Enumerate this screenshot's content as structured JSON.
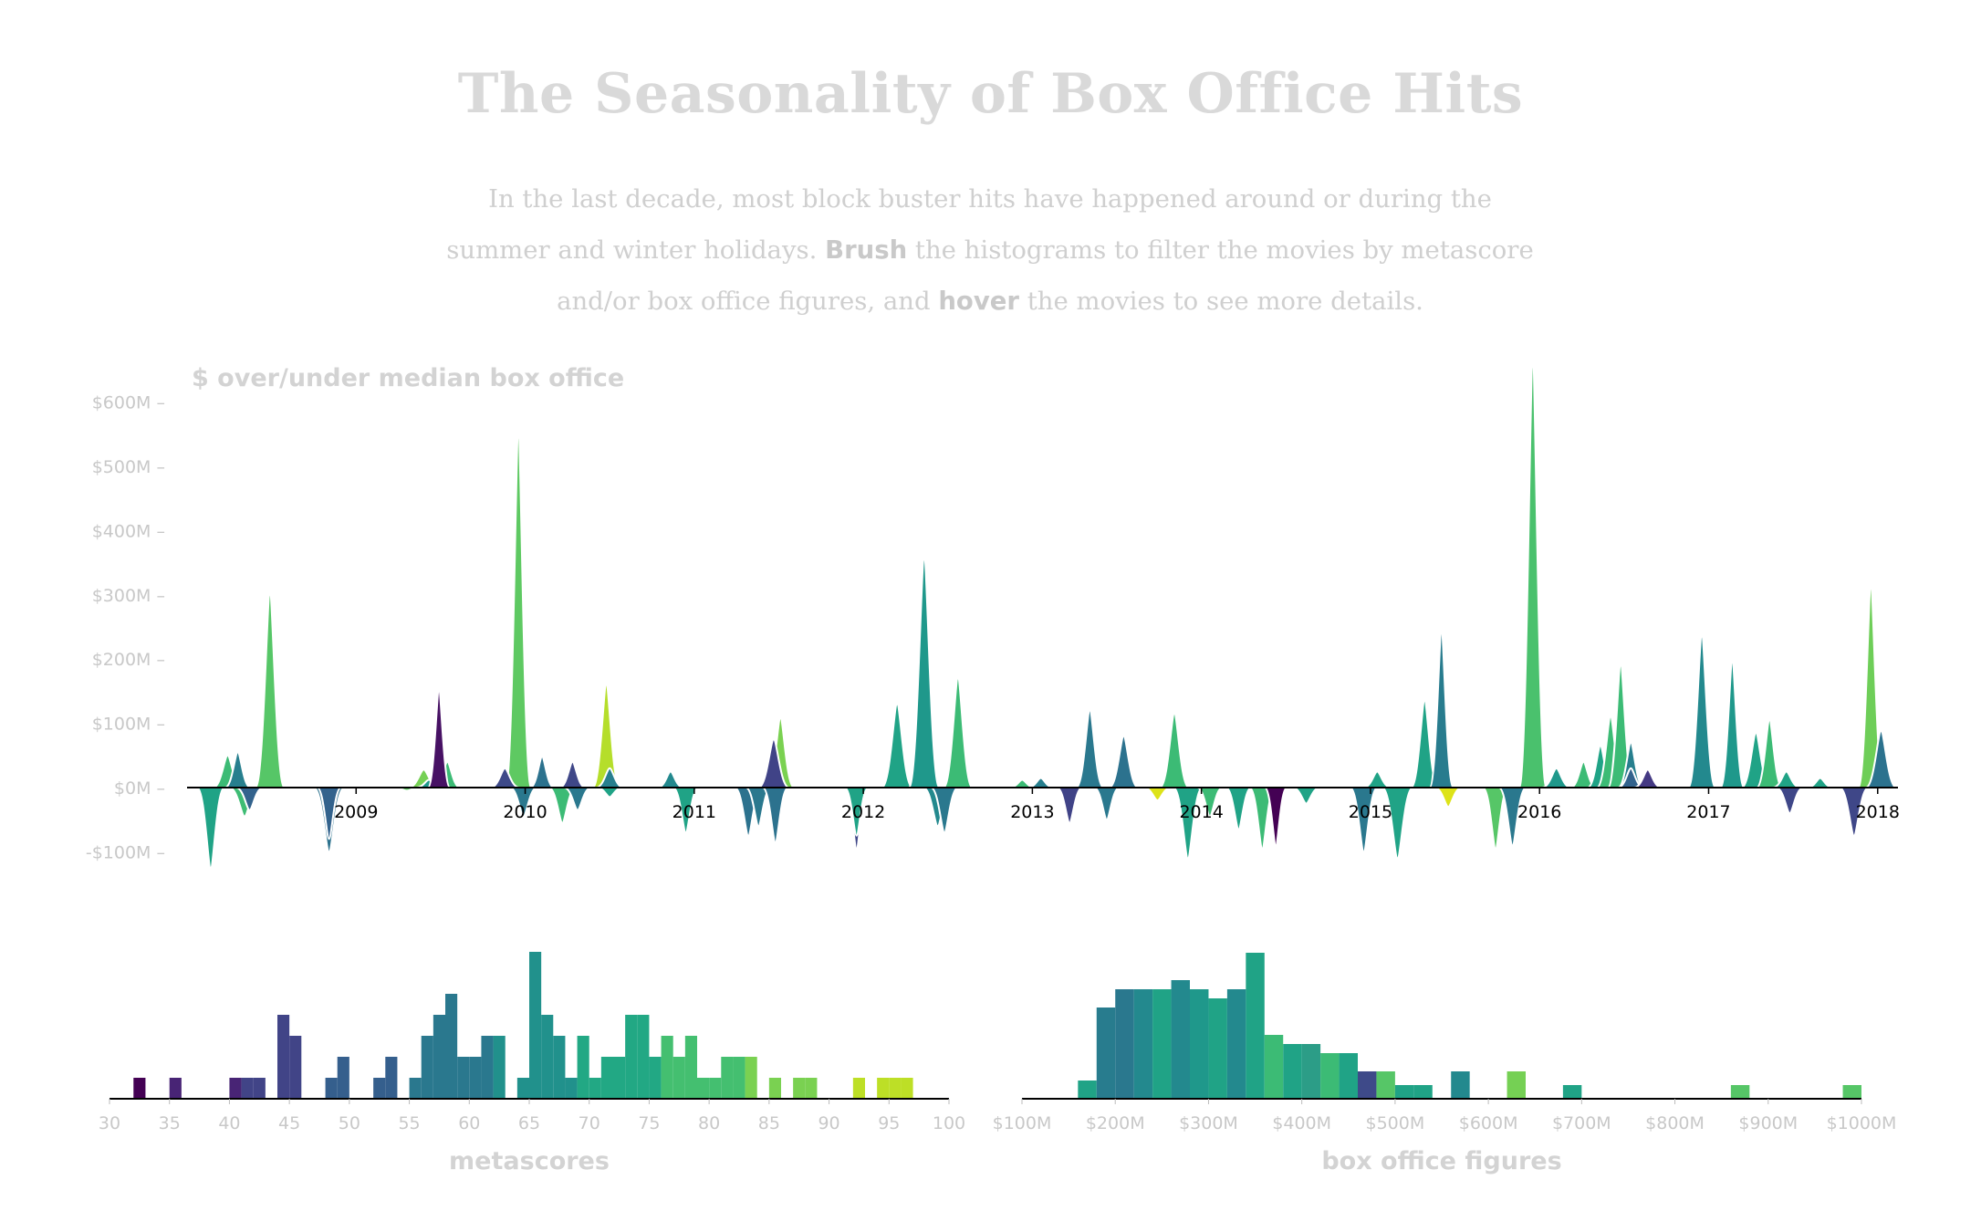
{
  "page": {
    "title": "The Seasonality of Box Office Hits",
    "intro_1": "In the last decade, most block buster hits have happened around or during the summer and winter holidays.",
    "brush_word": "Brush",
    "intro_2": "the histograms to filter the movies by metascore and/or box office figures, and",
    "hover_word": "hover",
    "intro_3": "the movies to see more details."
  },
  "chart_data": [
    {
      "type": "area",
      "title": "$ over/under median box office",
      "ylabel": "$ over/under median box office",
      "ylim": [
        -140,
        660
      ],
      "y_ticks": [
        {
          "value": -100,
          "label": "-$100M"
        },
        {
          "value": 0,
          "label": "$0M"
        },
        {
          "value": 100,
          "label": "$100M"
        },
        {
          "value": 200,
          "label": "$200M"
        },
        {
          "value": 300,
          "label": "$300M"
        },
        {
          "value": 400,
          "label": "$400M"
        },
        {
          "value": 500,
          "label": "$500M"
        },
        {
          "value": 600,
          "label": "$600M"
        }
      ],
      "xlim": [
        2008.0,
        2018.12
      ],
      "x_ticks": [
        {
          "value": 2009,
          "label": "2009"
        },
        {
          "value": 2010,
          "label": "2010"
        },
        {
          "value": 2011,
          "label": "2011"
        },
        {
          "value": 2012,
          "label": "2012"
        },
        {
          "value": 2013,
          "label": "2013"
        },
        {
          "value": 2014,
          "label": "2014"
        },
        {
          "value": 2015,
          "label": "2015"
        },
        {
          "value": 2016,
          "label": "2016"
        },
        {
          "value": 2017,
          "label": "2017"
        },
        {
          "value": 2018,
          "label": "2018"
        }
      ],
      "movies": [
        {
          "center": 2008.14,
          "width": 0.16,
          "value": -125,
          "color": "#20a386"
        },
        {
          "center": 2008.24,
          "width": 0.17,
          "value": 50,
          "color": "#3cbb75"
        },
        {
          "center": 2008.34,
          "width": 0.18,
          "value": -45,
          "color": "#3ebc74"
        },
        {
          "center": 2008.3,
          "width": 0.15,
          "value": 55,
          "color": "#277f8e"
        },
        {
          "center": 2008.37,
          "width": 0.16,
          "value": -35,
          "color": "#33638d"
        },
        {
          "center": 2008.49,
          "width": 0.17,
          "value": 300,
          "color": "#56c667"
        },
        {
          "center": 2008.84,
          "width": 0.18,
          "value": -100,
          "color": "#2c728e"
        },
        {
          "center": 2008.84,
          "width": 0.14,
          "value": -80,
          "color": "#33638d"
        },
        {
          "center": 2009.3,
          "width": 0.16,
          "value": -5,
          "color": "#5ec962"
        },
        {
          "center": 2009.4,
          "width": 0.18,
          "value": 28,
          "color": "#75d054"
        },
        {
          "center": 2009.43,
          "width": 0.15,
          "value": 12,
          "color": "#1f988b"
        },
        {
          "center": 2009.54,
          "width": 0.15,
          "value": 40,
          "color": "#3cbb75"
        },
        {
          "center": 2009.49,
          "width": 0.13,
          "value": 150,
          "color": "#471164"
        },
        {
          "center": 2009.96,
          "width": 0.15,
          "value": 545,
          "color": "#5ec962"
        },
        {
          "center": 2009.88,
          "width": 0.17,
          "value": 30,
          "color": "#3e4a89"
        },
        {
          "center": 2009.99,
          "width": 0.16,
          "value": -45,
          "color": "#2a788e"
        },
        {
          "center": 2010.1,
          "width": 0.14,
          "value": 48,
          "color": "#2c728e"
        },
        {
          "center": 2010.22,
          "width": 0.16,
          "value": -55,
          "color": "#3cbb75"
        },
        {
          "center": 2010.28,
          "width": 0.15,
          "value": 40,
          "color": "#3f4788"
        },
        {
          "center": 2010.31,
          "width": 0.16,
          "value": -35,
          "color": "#2a788e"
        },
        {
          "center": 2010.48,
          "width": 0.16,
          "value": 160,
          "color": "#b5de2b"
        },
        {
          "center": 2010.5,
          "width": 0.16,
          "value": 30,
          "color": "#277f8e"
        },
        {
          "center": 2010.5,
          "width": 0.15,
          "value": -15,
          "color": "#20a386"
        },
        {
          "center": 2010.86,
          "width": 0.15,
          "value": 25,
          "color": "#23898e"
        },
        {
          "center": 2010.95,
          "width": 0.15,
          "value": -70,
          "color": "#20a386"
        },
        {
          "center": 2011.32,
          "width": 0.16,
          "value": -75,
          "color": "#2c728e"
        },
        {
          "center": 2011.38,
          "width": 0.15,
          "value": -60,
          "color": "#2a788e"
        },
        {
          "center": 2011.48,
          "width": 0.15,
          "value": -85,
          "color": "#2c728e"
        },
        {
          "center": 2011.51,
          "width": 0.16,
          "value": 108,
          "color": "#7ad151"
        },
        {
          "center": 2011.47,
          "width": 0.18,
          "value": 75,
          "color": "#404387"
        },
        {
          "center": 2011.96,
          "width": 0.14,
          "value": -95,
          "color": "#3f4788"
        },
        {
          "center": 2011.96,
          "width": 0.14,
          "value": -75,
          "color": "#20a386"
        },
        {
          "center": 2012.2,
          "width": 0.18,
          "value": 130,
          "color": "#20a386"
        },
        {
          "center": 2012.36,
          "width": 0.18,
          "value": 355,
          "color": "#1f988b"
        },
        {
          "center": 2012.44,
          "width": 0.17,
          "value": -60,
          "color": "#23898e"
        },
        {
          "center": 2012.48,
          "width": 0.16,
          "value": -70,
          "color": "#2a788e"
        },
        {
          "center": 2012.56,
          "width": 0.17,
          "value": 170,
          "color": "#3cbb75"
        },
        {
          "center": 2012.94,
          "width": 0.15,
          "value": 12,
          "color": "#3cbb75"
        },
        {
          "center": 2013.05,
          "width": 0.15,
          "value": 15,
          "color": "#277f8e"
        },
        {
          "center": 2013.22,
          "width": 0.15,
          "value": -55,
          "color": "#404387"
        },
        {
          "center": 2013.34,
          "width": 0.16,
          "value": 120,
          "color": "#2a788e"
        },
        {
          "center": 2013.44,
          "width": 0.15,
          "value": -50,
          "color": "#2a788e"
        },
        {
          "center": 2013.54,
          "width": 0.17,
          "value": 80,
          "color": "#2c728e"
        },
        {
          "center": 2013.74,
          "width": 0.16,
          "value": -20,
          "color": "#dde318"
        },
        {
          "center": 2013.84,
          "width": 0.17,
          "value": 115,
          "color": "#3cbb75"
        },
        {
          "center": 2013.92,
          "width": 0.17,
          "value": -110,
          "color": "#20a386"
        },
        {
          "center": 2014.05,
          "width": 0.15,
          "value": -45,
          "color": "#3cbb75"
        },
        {
          "center": 2014.22,
          "width": 0.15,
          "value": -65,
          "color": "#20a386"
        },
        {
          "center": 2014.36,
          "width": 0.15,
          "value": -95,
          "color": "#3cbb75"
        },
        {
          "center": 2014.44,
          "width": 0.13,
          "value": -90,
          "color": "#440154"
        },
        {
          "center": 2014.62,
          "width": 0.16,
          "value": -25,
          "color": "#20a386"
        },
        {
          "center": 2014.96,
          "width": 0.16,
          "value": -100,
          "color": "#2a788e"
        },
        {
          "center": 2015.04,
          "width": 0.16,
          "value": 25,
          "color": "#20a386"
        },
        {
          "center": 2015.16,
          "width": 0.18,
          "value": -110,
          "color": "#20a386"
        },
        {
          "center": 2015.32,
          "width": 0.16,
          "value": 135,
          "color": "#20a386"
        },
        {
          "center": 2015.42,
          "width": 0.14,
          "value": 240,
          "color": "#287c8e"
        },
        {
          "center": 2015.46,
          "width": 0.16,
          "value": -30,
          "color": "#dde318"
        },
        {
          "center": 2015.74,
          "width": 0.15,
          "value": -95,
          "color": "#56c667"
        },
        {
          "center": 2015.84,
          "width": 0.16,
          "value": -90,
          "color": "#2a788e"
        },
        {
          "center": 2015.96,
          "width": 0.16,
          "value": 655,
          "color": "#4ac16d"
        },
        {
          "center": 2016.1,
          "width": 0.17,
          "value": 30,
          "color": "#1f988b"
        },
        {
          "center": 2016.26,
          "width": 0.15,
          "value": 40,
          "color": "#3cbb75"
        },
        {
          "center": 2016.36,
          "width": 0.15,
          "value": 65,
          "color": "#20a386"
        },
        {
          "center": 2016.42,
          "width": 0.16,
          "value": 110,
          "color": "#3cbb75"
        },
        {
          "center": 2016.48,
          "width": 0.15,
          "value": 190,
          "color": "#3cbb75"
        },
        {
          "center": 2016.54,
          "width": 0.15,
          "value": 70,
          "color": "#277f8e"
        },
        {
          "center": 2016.54,
          "width": 0.15,
          "value": 30,
          "color": "#33638d"
        },
        {
          "center": 2016.64,
          "width": 0.16,
          "value": 28,
          "color": "#443983"
        },
        {
          "center": 2016.96,
          "width": 0.16,
          "value": 235,
          "color": "#23898e"
        },
        {
          "center": 2017.14,
          "width": 0.14,
          "value": 195,
          "color": "#1f988b"
        },
        {
          "center": 2017.28,
          "width": 0.17,
          "value": 85,
          "color": "#20a386"
        },
        {
          "center": 2017.36,
          "width": 0.15,
          "value": 105,
          "color": "#3cbb75"
        },
        {
          "center": 2017.46,
          "width": 0.16,
          "value": 25,
          "color": "#20a386"
        },
        {
          "center": 2017.48,
          "width": 0.16,
          "value": -40,
          "color": "#3f4788"
        },
        {
          "center": 2017.66,
          "width": 0.15,
          "value": 15,
          "color": "#20a386"
        },
        {
          "center": 2017.86,
          "width": 0.17,
          "value": -75,
          "color": "#3f4788"
        },
        {
          "center": 2017.96,
          "width": 0.15,
          "value": 310,
          "color": "#6ece58"
        },
        {
          "center": 2018.02,
          "width": 0.18,
          "value": 88,
          "color": "#2c728e"
        }
      ]
    },
    {
      "type": "bar",
      "title": "metascores",
      "xlabel": "metascores",
      "xlim": [
        30,
        100
      ],
      "x_ticks": [
        30,
        35,
        40,
        45,
        50,
        55,
        60,
        65,
        70,
        75,
        80,
        85,
        90,
        95,
        100
      ],
      "bin_width": 1,
      "bins": [
        {
          "x": 32,
          "count": 1
        },
        {
          "x": 35,
          "count": 1
        },
        {
          "x": 40,
          "count": 1
        },
        {
          "x": 41,
          "count": 1
        },
        {
          "x": 42,
          "count": 1
        },
        {
          "x": 44,
          "count": 4
        },
        {
          "x": 45,
          "count": 3
        },
        {
          "x": 48,
          "count": 1
        },
        {
          "x": 49,
          "count": 2
        },
        {
          "x": 52,
          "count": 1
        },
        {
          "x": 53,
          "count": 2
        },
        {
          "x": 55,
          "count": 1
        },
        {
          "x": 56,
          "count": 3
        },
        {
          "x": 57,
          "count": 4
        },
        {
          "x": 58,
          "count": 5
        },
        {
          "x": 59,
          "count": 2
        },
        {
          "x": 60,
          "count": 2
        },
        {
          "x": 61,
          "count": 3
        },
        {
          "x": 62,
          "count": 3
        },
        {
          "x": 64,
          "count": 1
        },
        {
          "x": 65,
          "count": 7
        },
        {
          "x": 66,
          "count": 4
        },
        {
          "x": 67,
          "count": 3
        },
        {
          "x": 68,
          "count": 1
        },
        {
          "x": 69,
          "count": 3
        },
        {
          "x": 70,
          "count": 1
        },
        {
          "x": 71,
          "count": 2
        },
        {
          "x": 72,
          "count": 2
        },
        {
          "x": 73,
          "count": 4
        },
        {
          "x": 74,
          "count": 4
        },
        {
          "x": 75,
          "count": 2
        },
        {
          "x": 76,
          "count": 3
        },
        {
          "x": 77,
          "count": 2
        },
        {
          "x": 78,
          "count": 3
        },
        {
          "x": 79,
          "count": 1
        },
        {
          "x": 80,
          "count": 1
        },
        {
          "x": 81,
          "count": 2
        },
        {
          "x": 82,
          "count": 2
        },
        {
          "x": 83,
          "count": 2
        },
        {
          "x": 85,
          "count": 1
        },
        {
          "x": 87,
          "count": 1
        },
        {
          "x": 88,
          "count": 1
        },
        {
          "x": 92,
          "count": 1
        },
        {
          "x": 94,
          "count": 1
        },
        {
          "x": 95,
          "count": 1
        },
        {
          "x": 96,
          "count": 1
        }
      ]
    },
    {
      "type": "bar",
      "title": "box office figures",
      "xlabel": "box office figures",
      "xlim": [
        100,
        1000
      ],
      "x_ticks": [
        {
          "value": 100,
          "label": "$100M"
        },
        {
          "value": 200,
          "label": "$200M"
        },
        {
          "value": 300,
          "label": "$300M"
        },
        {
          "value": 400,
          "label": "$400M"
        },
        {
          "value": 500,
          "label": "$500M"
        },
        {
          "value": 600,
          "label": "$600M"
        },
        {
          "value": 700,
          "label": "$700M"
        },
        {
          "value": 800,
          "label": "$800M"
        },
        {
          "value": 900,
          "label": "$900M"
        },
        {
          "value": 1000,
          "label": "$1000M"
        }
      ],
      "bin_width": 20,
      "bins": [
        {
          "x": 160,
          "count": 1
        },
        {
          "x": 180,
          "count": 5
        },
        {
          "x": 200,
          "count": 6
        },
        {
          "x": 220,
          "count": 6
        },
        {
          "x": 240,
          "count": 6
        },
        {
          "x": 260,
          "count": 6.5
        },
        {
          "x": 280,
          "count": 6
        },
        {
          "x": 300,
          "count": 5.5
        },
        {
          "x": 320,
          "count": 6
        },
        {
          "x": 340,
          "count": 8
        },
        {
          "x": 360,
          "count": 3.5
        },
        {
          "x": 380,
          "count": 3
        },
        {
          "x": 400,
          "count": 3
        },
        {
          "x": 420,
          "count": 2.5
        },
        {
          "x": 440,
          "count": 2.5
        },
        {
          "x": 460,
          "count": 1.5
        },
        {
          "x": 480,
          "count": 1.5
        },
        {
          "x": 500,
          "count": 0.75
        },
        {
          "x": 520,
          "count": 0.75
        },
        {
          "x": 560,
          "count": 1.5
        },
        {
          "x": 620,
          "count": 1.5
        },
        {
          "x": 680,
          "count": 0.75
        },
        {
          "x": 860,
          "count": 0.75
        },
        {
          "x": 980,
          "count": 0.75
        }
      ]
    }
  ]
}
